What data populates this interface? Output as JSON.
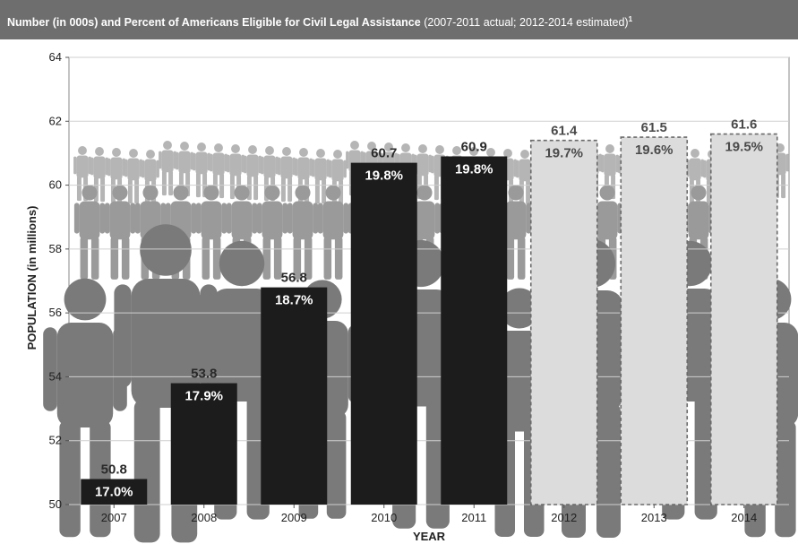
{
  "header": {
    "title": "Number (in 000s) and Percent of Americans Eligible for Civil Legal Assistance",
    "subtitle": "(2007-2011 actual; 2012-2014 estimated)",
    "footnote_mark": "1"
  },
  "colors": {
    "header_bg": "#6e6e6e",
    "actual_bar": "#1c1c1c",
    "estimated_bar": "#dcdcdc",
    "people_dark": "#7a7a7a",
    "people_light": "#b5b5b5"
  },
  "chart_data": {
    "type": "bar",
    "title": "Number (in 000s) and Percent of Americans Eligible for Civil Legal Assistance",
    "xlabel": "YEAR",
    "ylabel": "POPULATION (in millions)",
    "ylim": [
      50,
      64
    ],
    "yticks": [
      50,
      52,
      54,
      56,
      58,
      60,
      62,
      64
    ],
    "categories": [
      "2007",
      "2008",
      "2009",
      "2010",
      "2011",
      "2012",
      "2013",
      "2014"
    ],
    "values": [
      50.8,
      53.8,
      56.8,
      60.7,
      60.9,
      61.4,
      61.5,
      61.6
    ],
    "value_labels": [
      "50.8",
      "53.8",
      "56.8",
      "60.7",
      "60.9",
      "61.4",
      "61.5",
      "61.6"
    ],
    "percent_labels": [
      "17.0%",
      "17.9%",
      "18.7%",
      "19.8%",
      "19.8%",
      "19.7%",
      "19.6%",
      "19.5%"
    ],
    "estimated": [
      false,
      false,
      false,
      false,
      false,
      true,
      true,
      true
    ],
    "grid": true
  }
}
